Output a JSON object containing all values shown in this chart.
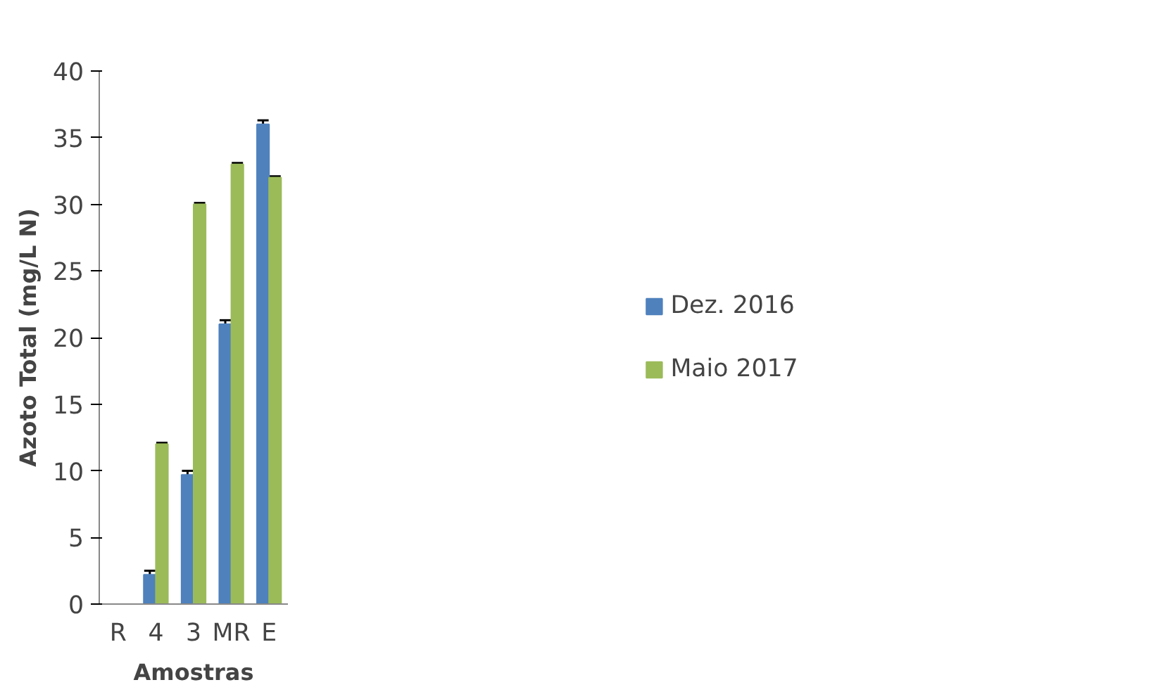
{
  "chart_data": {
    "type": "bar",
    "xlabel": "Amostras",
    "ylabel": "Azoto Total (mg/L N)",
    "categories": [
      "R",
      "4",
      "3",
      "MR",
      "E"
    ],
    "series": [
      {
        "name": "Dez. 2016",
        "color": "#4f81bd",
        "values": [
          null,
          2.2,
          9.7,
          21,
          36
        ],
        "errors": [
          null,
          0.3,
          0.3,
          0.3,
          0.3
        ]
      },
      {
        "name": "Maio 2017",
        "color": "#9bbb59",
        "values": [
          null,
          12,
          30,
          33,
          32
        ],
        "errors": [
          null,
          0.1,
          0.1,
          0.1,
          0.1
        ]
      }
    ],
    "ylim": [
      0,
      40
    ],
    "yticks": [
      0,
      5,
      10,
      15,
      20,
      25,
      30,
      35,
      40
    ],
    "grid": false,
    "legend": "right"
  }
}
